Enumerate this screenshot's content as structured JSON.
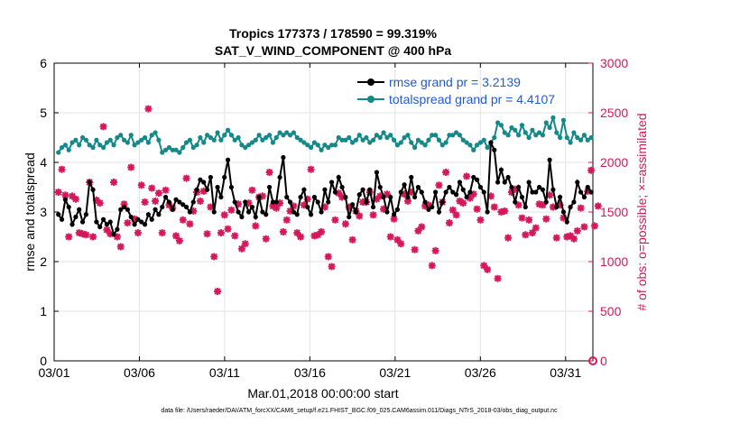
{
  "chart_data": {
    "type": "line",
    "title_line1": "Tropics 177373 / 178590 = 99.319%",
    "title_line2": "SAT_V_WIND_COMPONENT @ 400 hPa",
    "xlabel": "Mar.01,2018 00:00:00 start",
    "ylabel_left": "rmse and totalspread",
    "ylabel_right": "# of obs: o=possible; ×=assimilated",
    "footnote": "data file: /Users/raeder/DAI/ATM_forcXX/CAM6_setup/f.e21.FHIST_BGC.f09_025.CAM6assim.011/Diags_NTrS_2018-03/obs_diag_output.nc",
    "xlim": [
      0,
      31.6
    ],
    "ylim_left": [
      0,
      6
    ],
    "ylim_right": [
      0,
      3000
    ],
    "x_ticks": [
      0,
      5,
      10,
      15,
      20,
      25,
      30
    ],
    "x_tick_labels": [
      "03/01",
      "03/06",
      "03/11",
      "03/16",
      "03/21",
      "03/26",
      "03/31"
    ],
    "y_left_ticks": [
      "0",
      "1",
      "2",
      "3",
      "4",
      "5",
      "6"
    ],
    "y_right_ticks": [
      "0",
      "500",
      "1000",
      "1500",
      "2000",
      "2500",
      "3000"
    ],
    "colors": {
      "rmse": "#000000",
      "spread": "#138a89",
      "obs": "#d6175a",
      "legend_text": "#1f5bd6"
    },
    "series": [
      {
        "name": "rmse grand pr = 3.2139",
        "color": "#000000",
        "values": [
          2.95,
          2.85,
          3.25,
          3.1,
          2.75,
          2.9,
          3.05,
          2.8,
          2.95,
          3.6,
          3.45,
          2.8,
          2.7,
          2.85,
          2.75,
          2.8,
          2.55,
          2.65,
          3.05,
          3.1,
          3.05,
          2.9,
          2.75,
          2.85,
          2.8,
          2.75,
          2.95,
          2.85,
          3.05,
          2.95,
          3.1,
          3.3,
          3.2,
          3.05,
          3.25,
          3.2,
          3.15,
          3.1,
          3.0,
          3.2,
          3.45,
          3.65,
          3.6,
          3.45,
          3.7,
          3.0,
          3.5,
          3.3,
          3.7,
          4.05,
          3.5,
          3.2,
          3.0,
          2.9,
          3.2,
          3.0,
          3.1,
          2.9,
          3.3,
          3.0,
          2.95,
          3.5,
          3.2,
          3.2,
          3.7,
          4.1,
          3.3,
          3.2,
          3.0,
          2.95,
          3.3,
          3.45,
          3.1,
          2.95,
          3.3,
          3.2,
          3.0,
          3.45,
          3.2,
          3.6,
          3.4,
          3.7,
          3.5,
          3.3,
          2.9,
          3.15,
          3.0,
          3.35,
          3.45,
          3.2,
          3.45,
          3.1,
          3.8,
          3.5,
          3.3,
          3.0,
          3.3,
          2.95,
          3.05,
          3.4,
          3.55,
          3.3,
          3.7,
          3.3,
          3.5,
          3.4,
          3.2,
          3.05,
          3.1,
          3.4,
          3.0,
          3.2,
          3.4,
          3.5,
          3.4,
          3.35,
          3.6,
          3.45,
          3.3,
          3.4,
          3.7,
          3.65,
          3.5,
          3.4,
          3.0,
          4.4,
          4.25,
          3.6,
          3.85,
          3.6,
          3.7,
          3.5,
          3.2,
          3.5,
          3.3,
          3.1,
          3.6,
          3.4,
          3.4,
          3.5,
          3.45,
          3.2,
          4.05,
          3.45,
          3.1,
          3.3,
          3.0,
          2.8,
          3.1,
          3.2,
          3.6,
          3.4,
          3.3,
          3.5,
          3.4
        ]
      },
      {
        "name": "totalspread grand pr = 4.4107",
        "color": "#138a89",
        "values": [
          4.2,
          4.3,
          4.35,
          4.25,
          4.4,
          4.45,
          4.35,
          4.5,
          4.45,
          4.35,
          4.3,
          4.45,
          4.35,
          4.3,
          4.4,
          4.45,
          4.35,
          4.5,
          4.55,
          4.45,
          4.4,
          4.55,
          4.35,
          4.4,
          4.45,
          4.5,
          4.4,
          4.55,
          4.6,
          4.45,
          4.2,
          4.25,
          4.3,
          4.25,
          4.25,
          4.2,
          4.3,
          4.4,
          4.45,
          4.3,
          4.35,
          4.5,
          4.4,
          4.55,
          4.5,
          4.45,
          4.6,
          4.45,
          4.55,
          4.65,
          4.55,
          4.45,
          4.5,
          4.35,
          4.3,
          4.35,
          4.4,
          4.45,
          4.55,
          4.45,
          4.5,
          4.55,
          4.4,
          4.5,
          4.6,
          4.55,
          4.6,
          4.55,
          4.6,
          4.5,
          4.45,
          4.4,
          4.35,
          4.3,
          4.4,
          4.35,
          4.25,
          4.35,
          4.3,
          4.35,
          4.35,
          4.5,
          4.45,
          4.45,
          4.5,
          4.4,
          4.45,
          4.55,
          4.45,
          4.5,
          4.4,
          4.45,
          4.55,
          4.5,
          4.6,
          4.5,
          4.55,
          4.45,
          4.35,
          4.4,
          4.5,
          4.55,
          4.4,
          4.3,
          4.45,
          4.4,
          4.35,
          4.45,
          4.55,
          4.55,
          4.45,
          4.35,
          4.4,
          4.55,
          4.55,
          4.6,
          4.55,
          4.45,
          4.4,
          4.35,
          4.25,
          4.35,
          4.4,
          4.45,
          4.3,
          4.4,
          4.5,
          4.8,
          4.75,
          4.6,
          4.55,
          4.7,
          4.65,
          4.55,
          4.75,
          4.6,
          4.5,
          4.65,
          4.55,
          4.6,
          4.55,
          4.8,
          4.7,
          4.9,
          4.6,
          4.5,
          4.85,
          4.5,
          4.4,
          4.6,
          4.5,
          4.45,
          4.55,
          4.45,
          4.5
        ]
      },
      {
        "name": "obs assimilated (right axis)",
        "color": "#d6175a",
        "axis": "right",
        "values": [
          1700,
          1930,
          1670,
          1250,
          1660,
          1630,
          1290,
          1280,
          1270,
          1800,
          1250,
          1620,
          1590,
          2360,
          1320,
          1280,
          1800,
          1250,
          1150,
          1580,
          1390,
          1950,
          1430,
          1290,
          1770,
          1600,
          2540,
          1740,
          1610,
          1690,
          1290,
          1720,
          1570,
          1540,
          1260,
          1210,
          1420,
          1840,
          1380,
          1510,
          1700,
          1610,
          1710,
          1280,
          1550,
          1050,
          700,
          1290,
          1470,
          1330,
          1520,
          1260,
          1580,
          1130,
          1180,
          1590,
          1720,
          1360,
          1650,
          1660,
          1230,
          1900,
          1560,
          1540,
          1590,
          1300,
          1420,
          1510,
          1560,
          1290,
          1250,
          1570,
          1630,
          1930,
          1260,
          1270,
          1300,
          1550,
          1050,
          950,
          1420,
          1690,
          1650,
          1380,
          1550,
          1220,
          1510,
          1460,
          1600,
          1600,
          1700,
          1470,
          1630,
          1660,
          1530,
          1680,
          1250,
          1430,
          1220,
          1180,
          1680,
          1610,
          1700,
          1120,
          1310,
          1350,
          1560,
          1570,
          960,
          1110,
          1770,
          1600,
          1900,
          1390,
          1520,
          1470,
          1610,
          1590,
          1860,
          1640,
          1680,
          1530,
          1420,
          960,
          920,
          1660,
          1550,
          830,
          1500,
          1510,
          1240,
          1700,
          1730,
          1570,
          1440,
          1270,
          1420,
          1290,
          1340,
          1580,
          1570,
          1430,
          1670,
          1550,
          1240,
          1570,
          1440,
          1250,
          1260,
          1230,
          1310,
          1540,
          1350,
          1710,
          1920,
          1360,
          1560
        ]
      }
    ],
    "legend_position": "top-right"
  }
}
